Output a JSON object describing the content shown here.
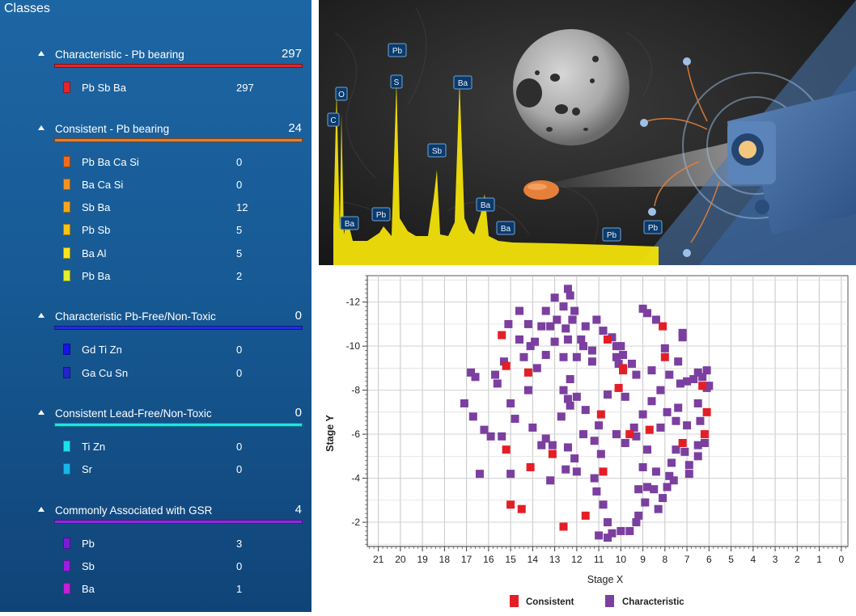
{
  "sidebar": {
    "title": "Classes",
    "groups": [
      {
        "name": "Characteristic - Pb bearing",
        "count": "297",
        "color": "#e4262b",
        "items": [
          {
            "name": "Pb Sb Ba",
            "count": "297",
            "color": "#e4262b"
          }
        ]
      },
      {
        "name": "Consistent - Pb bearing",
        "count": "24",
        "color": "#f07b22",
        "items": [
          {
            "name": "Pb Ba Ca Si",
            "count": "0",
            "color": "#f26b1c"
          },
          {
            "name": "Ba Ca Si",
            "count": "0",
            "color": "#f7921e"
          },
          {
            "name": "Sb Ba",
            "count": "12",
            "color": "#f9a61a"
          },
          {
            "name": "Pb Sb",
            "count": "5",
            "color": "#fcc214"
          },
          {
            "name": "Ba Al",
            "count": "5",
            "color": "#fbe51a"
          },
          {
            "name": "Pb Ba",
            "count": "2",
            "color": "#e5f02a"
          }
        ]
      },
      {
        "name": "Characteristic Pb-Free/Non-Toxic",
        "count": "0",
        "color": "#1f2fe0",
        "items": [
          {
            "name": "Gd Ti Zn",
            "count": "0",
            "color": "#1515e0"
          },
          {
            "name": "Ga Cu Sn",
            "count": "0",
            "color": "#2424c8"
          }
        ]
      },
      {
        "name": "Consistent Lead-Free/Non-Toxic",
        "count": "0",
        "color": "#1de2ea",
        "items": [
          {
            "name": "Ti Zn",
            "count": "0",
            "color": "#1de2ea"
          },
          {
            "name": "Sr",
            "count": "0",
            "color": "#19b6ec"
          }
        ]
      },
      {
        "name": "Commonly Associated with GSR",
        "count": "4",
        "color": "#8a2be2",
        "items": [
          {
            "name": "Pb",
            "count": "3",
            "color": "#7a1bd8"
          },
          {
            "name": "Sb",
            "count": "0",
            "color": "#9c1ee0"
          },
          {
            "name": "Ba",
            "count": "1",
            "color": "#c61fd8"
          }
        ]
      }
    ]
  },
  "spectrum": {
    "peaks": [
      "C",
      "O",
      "Ba",
      "Pb",
      "Pb",
      "S",
      "Sb",
      "Ba",
      "Ba",
      "Ba",
      "Pb",
      "Pb"
    ]
  },
  "chart_data": {
    "type": "scatter",
    "xlabel": "Stage X",
    "ylabel": "Stage Y",
    "xlim": [
      21.5,
      -0.3
    ],
    "ylim": [
      -13.2,
      -0.9
    ],
    "x_ticks": [
      21,
      20,
      19,
      18,
      17,
      16,
      15,
      14,
      13,
      12,
      11,
      10,
      9,
      8,
      7,
      6,
      5,
      4,
      3,
      2,
      1,
      0
    ],
    "y_ticks": [
      -12,
      -10,
      -8,
      -6,
      -4,
      -2
    ],
    "legend": [
      "Consistent",
      "Characteristic"
    ],
    "colors": {
      "Consistent": "#e41e26",
      "Characteristic": "#7b3fa0"
    },
    "series": [
      {
        "name": "Consistent",
        "points": [
          [
            15.4,
            -10.5
          ],
          [
            15.2,
            -9.1
          ],
          [
            14.2,
            -8.8
          ],
          [
            15.2,
            -5.3
          ],
          [
            14.1,
            -4.5
          ],
          [
            13.1,
            -5.1
          ],
          [
            15.0,
            -2.8
          ],
          [
            14.5,
            -2.6
          ],
          [
            12.6,
            -1.8
          ],
          [
            11.6,
            -2.3
          ],
          [
            10.9,
            -6.9
          ],
          [
            10.1,
            -8.1
          ],
          [
            10.6,
            -10.3
          ],
          [
            9.9,
            -9.0
          ],
          [
            9.6,
            -6.0
          ],
          [
            10.8,
            -4.3
          ],
          [
            8.1,
            -10.9
          ],
          [
            8.0,
            -9.5
          ],
          [
            7.2,
            -5.6
          ],
          [
            6.3,
            -8.2
          ],
          [
            6.2,
            -6.0
          ],
          [
            6.1,
            -7.0
          ],
          [
            9.9,
            -8.9
          ],
          [
            8.7,
            -6.2
          ]
        ]
      },
      {
        "name": "Characteristic",
        "points": [
          [
            12.4,
            -12.6
          ],
          [
            12.3,
            -12.3
          ],
          [
            12.6,
            -11.8
          ],
          [
            12.1,
            -11.6
          ],
          [
            13.0,
            -12.2
          ],
          [
            13.4,
            -11.6
          ],
          [
            12.9,
            -11.2
          ],
          [
            12.2,
            -11.2
          ],
          [
            13.6,
            -10.9
          ],
          [
            14.2,
            -11.0
          ],
          [
            14.6,
            -11.6
          ],
          [
            15.1,
            -11.0
          ],
          [
            13.9,
            -10.2
          ],
          [
            14.1,
            -10.0
          ],
          [
            13.2,
            -10.9
          ],
          [
            12.5,
            -10.8
          ],
          [
            11.6,
            -10.9
          ],
          [
            11.1,
            -11.2
          ],
          [
            10.8,
            -10.7
          ],
          [
            10.4,
            -10.4
          ],
          [
            10.2,
            -10.0
          ],
          [
            11.8,
            -10.3
          ],
          [
            12.4,
            -10.3
          ],
          [
            13.0,
            -10.2
          ],
          [
            14.6,
            -10.3
          ],
          [
            15.3,
            -9.3
          ],
          [
            15.7,
            -8.7
          ],
          [
            16.8,
            -8.8
          ],
          [
            16.6,
            -8.6
          ],
          [
            15.6,
            -8.3
          ],
          [
            14.4,
            -9.5
          ],
          [
            13.8,
            -9.0
          ],
          [
            13.4,
            -9.6
          ],
          [
            12.6,
            -9.5
          ],
          [
            12.0,
            -9.5
          ],
          [
            11.7,
            -10.0
          ],
          [
            11.3,
            -9.8
          ],
          [
            10.2,
            -9.5
          ],
          [
            9.5,
            -9.2
          ],
          [
            9.3,
            -8.7
          ],
          [
            8.6,
            -8.9
          ],
          [
            7.8,
            -8.7
          ],
          [
            7.3,
            -8.3
          ],
          [
            7.0,
            -8.4
          ],
          [
            6.7,
            -8.5
          ],
          [
            6.5,
            -8.8
          ],
          [
            6.1,
            -8.9
          ],
          [
            6.0,
            -8.2
          ],
          [
            6.1,
            -8.1
          ],
          [
            6.5,
            -7.4
          ],
          [
            6.4,
            -6.6
          ],
          [
            6.2,
            -5.6
          ],
          [
            6.5,
            -5.0
          ],
          [
            6.9,
            -4.6
          ],
          [
            7.1,
            -5.2
          ],
          [
            7.5,
            -5.3
          ],
          [
            7.7,
            -4.7
          ],
          [
            7.8,
            -4.1
          ],
          [
            7.9,
            -3.6
          ],
          [
            8.1,
            -3.1
          ],
          [
            8.3,
            -2.6
          ],
          [
            8.5,
            -3.5
          ],
          [
            8.8,
            -3.6
          ],
          [
            9.2,
            -3.5
          ],
          [
            8.9,
            -2.9
          ],
          [
            9.2,
            -2.3
          ],
          [
            9.3,
            -2.0
          ],
          [
            9.6,
            -1.6
          ],
          [
            10.0,
            -1.6
          ],
          [
            10.4,
            -1.5
          ],
          [
            10.6,
            -1.3
          ],
          [
            11.0,
            -1.4
          ],
          [
            10.6,
            -2.0
          ],
          [
            10.8,
            -2.8
          ],
          [
            11.1,
            -3.4
          ],
          [
            11.2,
            -4.0
          ],
          [
            12.0,
            -4.3
          ],
          [
            12.5,
            -4.4
          ],
          [
            12.1,
            -4.9
          ],
          [
            12.4,
            -5.4
          ],
          [
            13.1,
            -5.5
          ],
          [
            13.4,
            -5.8
          ],
          [
            13.6,
            -5.5
          ],
          [
            13.2,
            -3.9
          ],
          [
            15.0,
            -4.2
          ],
          [
            15.4,
            -5.9
          ],
          [
            15.9,
            -5.9
          ],
          [
            16.2,
            -6.2
          ],
          [
            16.7,
            -6.8
          ],
          [
            17.1,
            -7.4
          ],
          [
            15.0,
            -7.4
          ],
          [
            14.0,
            -6.3
          ],
          [
            14.2,
            -8.0
          ],
          [
            12.4,
            -7.6
          ],
          [
            12.0,
            -7.7
          ],
          [
            11.6,
            -7.1
          ],
          [
            11.0,
            -6.4
          ],
          [
            11.2,
            -5.7
          ],
          [
            10.9,
            -5.1
          ],
          [
            10.2,
            -6.0
          ],
          [
            9.8,
            -5.6
          ],
          [
            9.3,
            -5.9
          ],
          [
            8.8,
            -5.3
          ],
          [
            9.0,
            -4.5
          ],
          [
            8.4,
            -4.3
          ],
          [
            9.0,
            -6.9
          ],
          [
            8.6,
            -7.5
          ],
          [
            8.2,
            -8.0
          ],
          [
            7.9,
            -7.0
          ],
          [
            7.4,
            -7.2
          ],
          [
            7.0,
            -6.4
          ],
          [
            7.5,
            -6.6
          ],
          [
            8.2,
            -6.3
          ],
          [
            6.9,
            -4.2
          ],
          [
            7.6,
            -3.9
          ],
          [
            6.5,
            -5.5
          ],
          [
            9.9,
            -9.6
          ],
          [
            10.0,
            -10.0
          ],
          [
            9.0,
            -11.7
          ],
          [
            8.8,
            -11.5
          ],
          [
            8.4,
            -11.2
          ],
          [
            7.2,
            -10.6
          ],
          [
            7.2,
            -10.4
          ],
          [
            8.0,
            -9.9
          ],
          [
            7.4,
            -9.3
          ],
          [
            6.3,
            -8.6
          ],
          [
            14.8,
            -6.7
          ],
          [
            16.4,
            -4.2
          ],
          [
            12.3,
            -8.5
          ],
          [
            12.6,
            -8.0
          ],
          [
            12.7,
            -6.8
          ],
          [
            11.7,
            -6.0
          ],
          [
            12.3,
            -7.3
          ],
          [
            10.6,
            -7.8
          ],
          [
            11.3,
            -9.3
          ],
          [
            10.1,
            -9.2
          ],
          [
            9.8,
            -7.7
          ],
          [
            9.4,
            -6.3
          ]
        ]
      }
    ]
  }
}
